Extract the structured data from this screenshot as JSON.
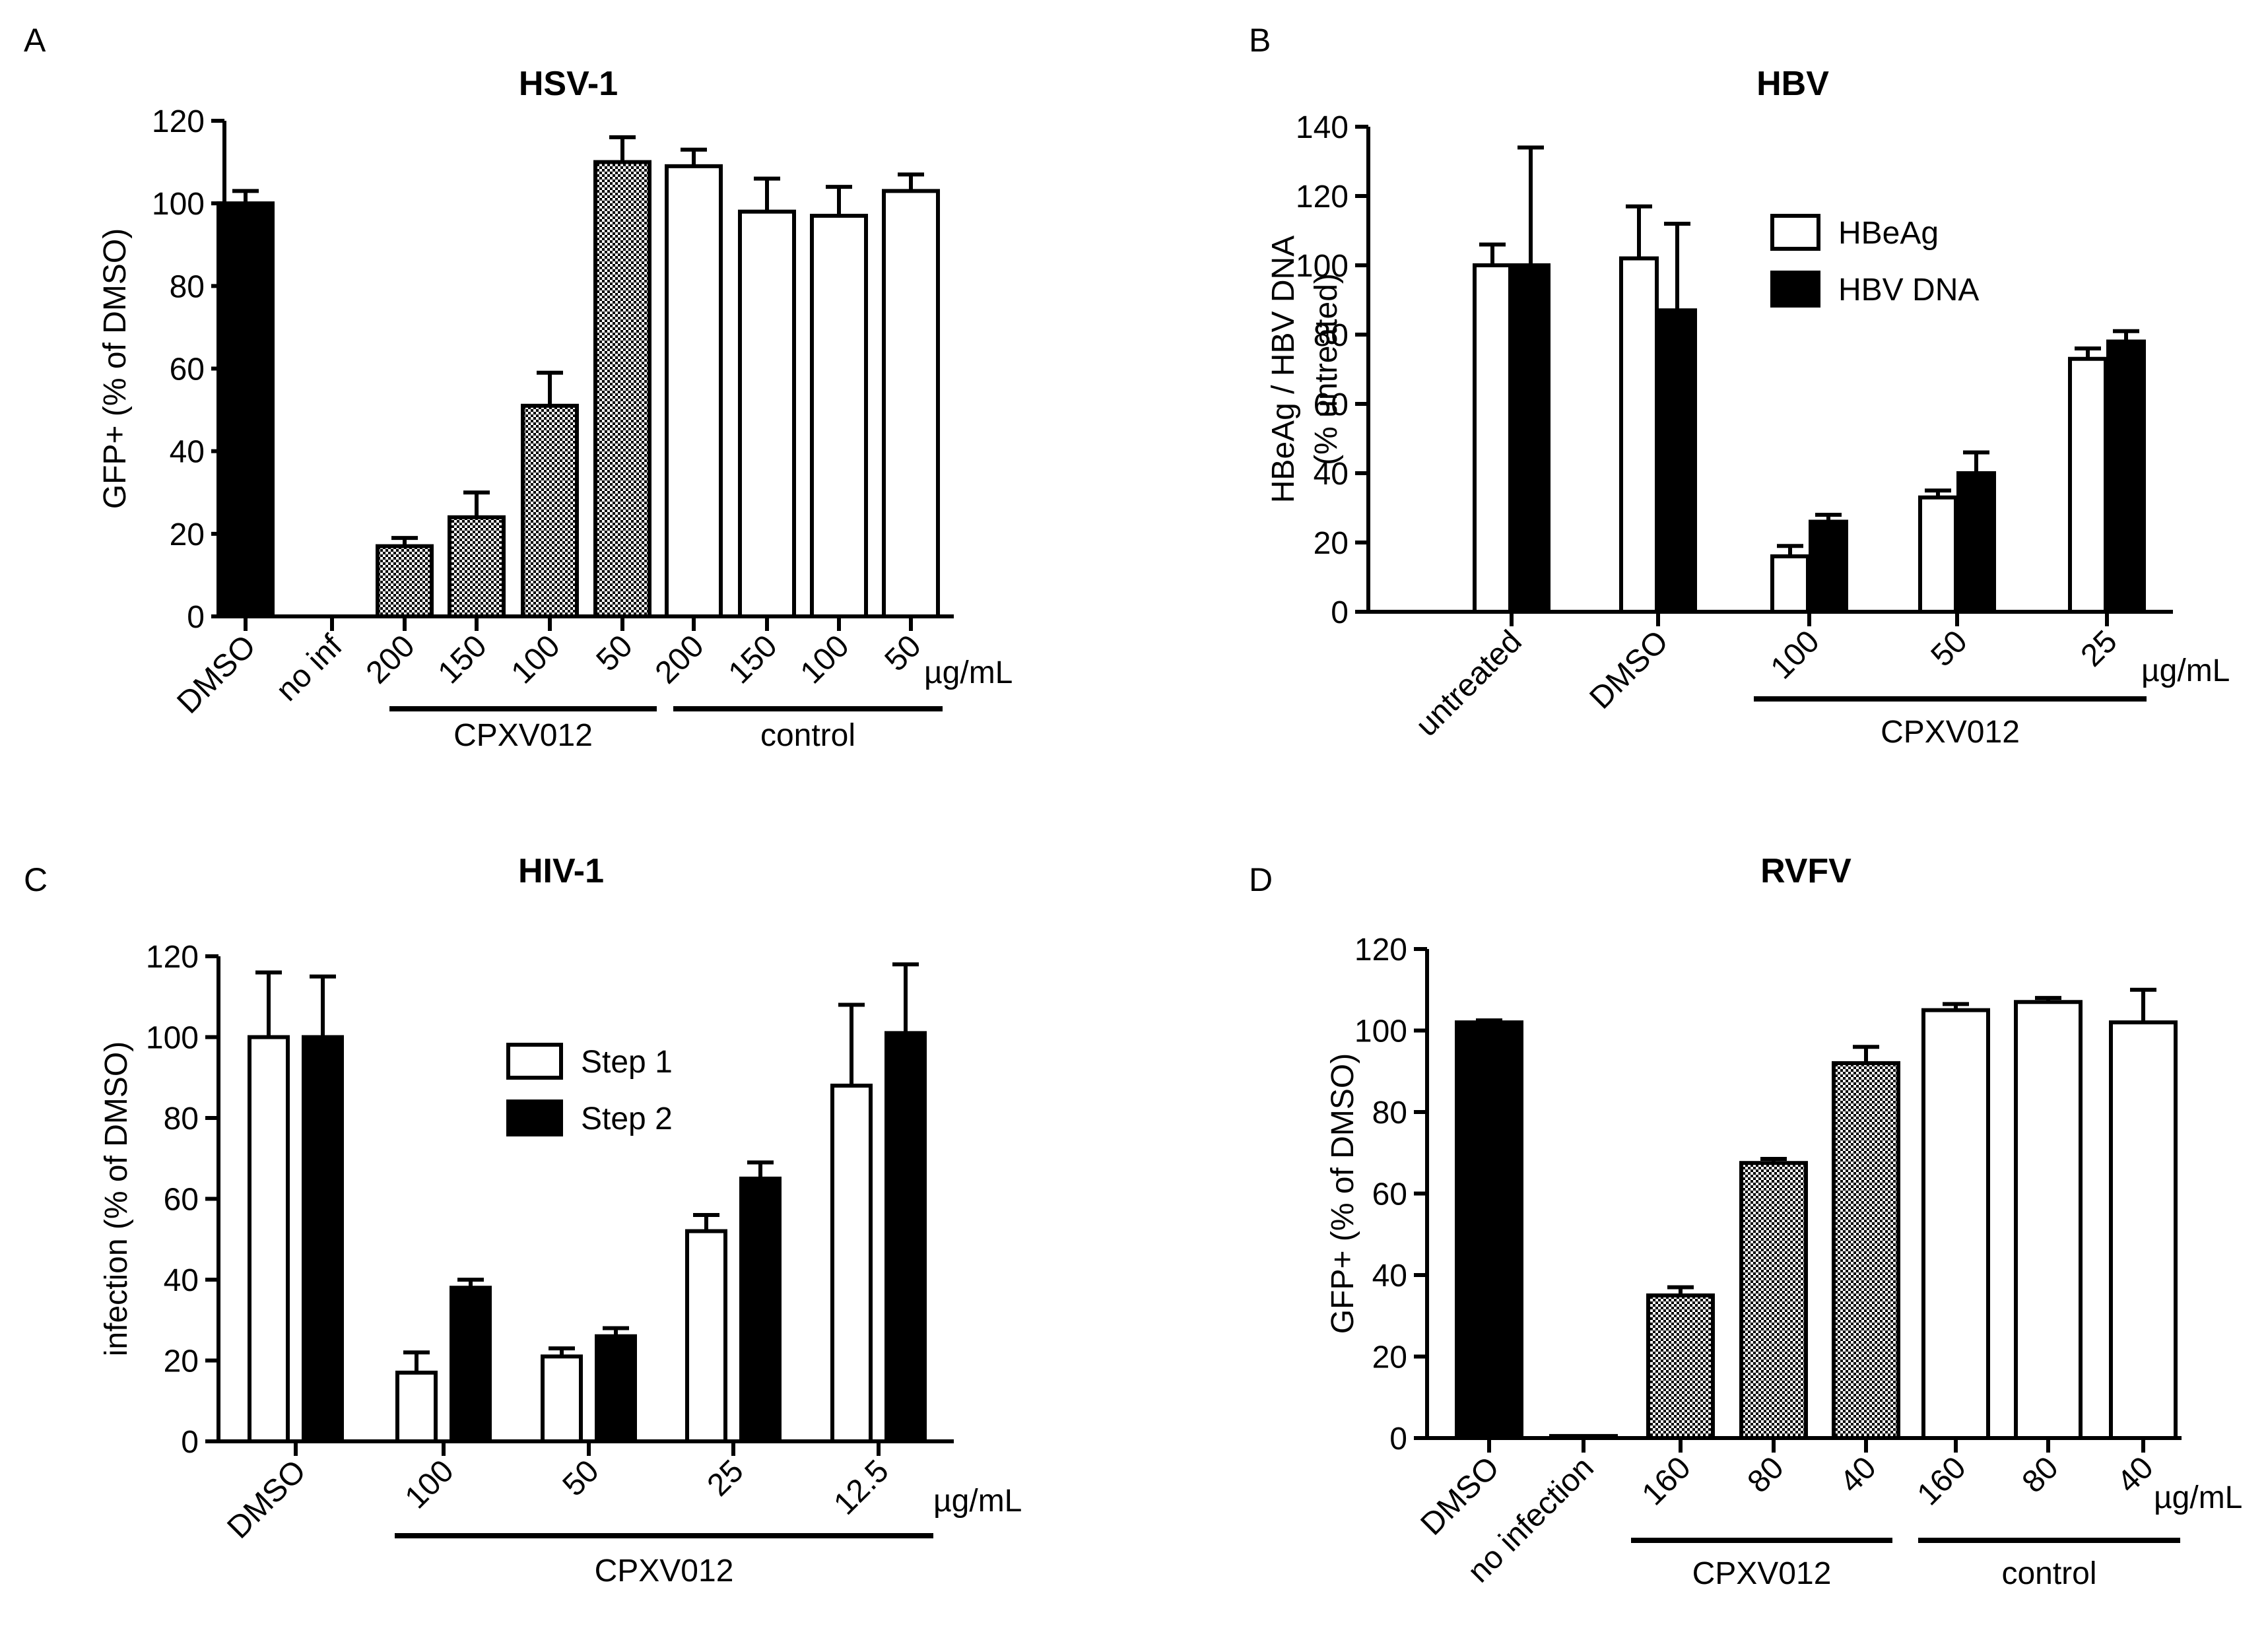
{
  "colors": {
    "solid": "#000000",
    "open": "#ffffff",
    "axis": "#000000"
  },
  "chart_data": [
    {
      "type": "bar",
      "panel": "A",
      "title": "HSV-1",
      "ylabel": "GFP+ (% of DMSO)",
      "ylim": [
        0,
        120
      ],
      "yticks": [
        0,
        20,
        40,
        60,
        80,
        100,
        120
      ],
      "unit": "µg/mL",
      "categories": [
        "DMSO",
        "no inf",
        "200",
        "150",
        "100",
        "50",
        "200",
        "150",
        "100",
        "50"
      ],
      "values": [
        100,
        0,
        17,
        24,
        51,
        110,
        109,
        98,
        97,
        103
      ],
      "errors": [
        3,
        0,
        2,
        6,
        8,
        6,
        4,
        8,
        7,
        4
      ],
      "fills": [
        "solid",
        "none",
        "checker",
        "checker",
        "checker",
        "checker",
        "open",
        "open",
        "open",
        "open"
      ],
      "groups": [
        {
          "label": "CPXV012",
          "from": 2,
          "to": 5
        },
        {
          "label": "control",
          "from": 6,
          "to": 9
        }
      ]
    },
    {
      "type": "bar",
      "panel": "B",
      "title": "HBV",
      "ylabel": "HBeAg / HBV DNA",
      "ylabel2": "(% untreated)",
      "ylim": [
        0,
        140
      ],
      "yticks": [
        0,
        20,
        40,
        60,
        80,
        100,
        120,
        140
      ],
      "unit": "µg/mL",
      "categories": [
        "untreated",
        "DMSO",
        "100",
        "50",
        "25"
      ],
      "series": [
        {
          "name": "HBeAg",
          "fill": "open",
          "values": [
            100,
            102,
            16,
            33,
            73
          ],
          "errors": [
            6,
            15,
            3,
            2,
            3
          ]
        },
        {
          "name": "HBV DNA",
          "fill": "solid",
          "values": [
            100,
            87,
            26,
            40,
            78
          ],
          "errors": [
            34,
            25,
            2,
            6,
            3
          ]
        }
      ],
      "groups": [
        {
          "label": "CPXV012",
          "from": 2,
          "to": 4
        }
      ],
      "legend": "top-right"
    },
    {
      "type": "bar",
      "panel": "C",
      "title": "HIV-1",
      "ylabel": "infection (% of DMSO)",
      "ylim": [
        0,
        120
      ],
      "yticks": [
        0,
        20,
        40,
        60,
        80,
        100,
        120
      ],
      "unit": "µg/mL",
      "categories": [
        "DMSO",
        "100",
        "50",
        "25",
        "12.5"
      ],
      "series": [
        {
          "name": "Step 1",
          "fill": "open",
          "values": [
            100,
            17,
            21,
            52,
            88
          ],
          "errors": [
            16,
            5,
            2,
            4,
            20
          ]
        },
        {
          "name": "Step 2",
          "fill": "solid",
          "values": [
            100,
            38,
            26,
            65,
            101
          ],
          "errors": [
            15,
            2,
            2,
            4,
            17
          ]
        }
      ],
      "groups": [
        {
          "label": "CPXV012",
          "from": 1,
          "to": 4
        }
      ],
      "legend": "top-center"
    },
    {
      "type": "bar",
      "panel": "D",
      "title": "RVFV",
      "ylabel": "GFP+ (% of DMSO)",
      "ylim": [
        0,
        120
      ],
      "yticks": [
        0,
        20,
        40,
        60,
        80,
        100,
        120
      ],
      "unit": "µg/mL",
      "categories": [
        "DMSO",
        "no infection",
        "160",
        "80",
        "40",
        "160",
        "80",
        "40"
      ],
      "values": [
        102,
        0.5,
        35,
        67.5,
        92,
        105,
        107,
        102
      ],
      "errors": [
        0.5,
        0,
        2,
        1,
        4,
        1.5,
        1,
        8
      ],
      "fills": [
        "solid",
        "solid",
        "checker",
        "checker",
        "checker",
        "open",
        "open",
        "open"
      ],
      "groups": [
        {
          "label": "CPXV012",
          "from": 2,
          "to": 4
        },
        {
          "label": "control",
          "from": 5,
          "to": 7
        }
      ]
    }
  ]
}
